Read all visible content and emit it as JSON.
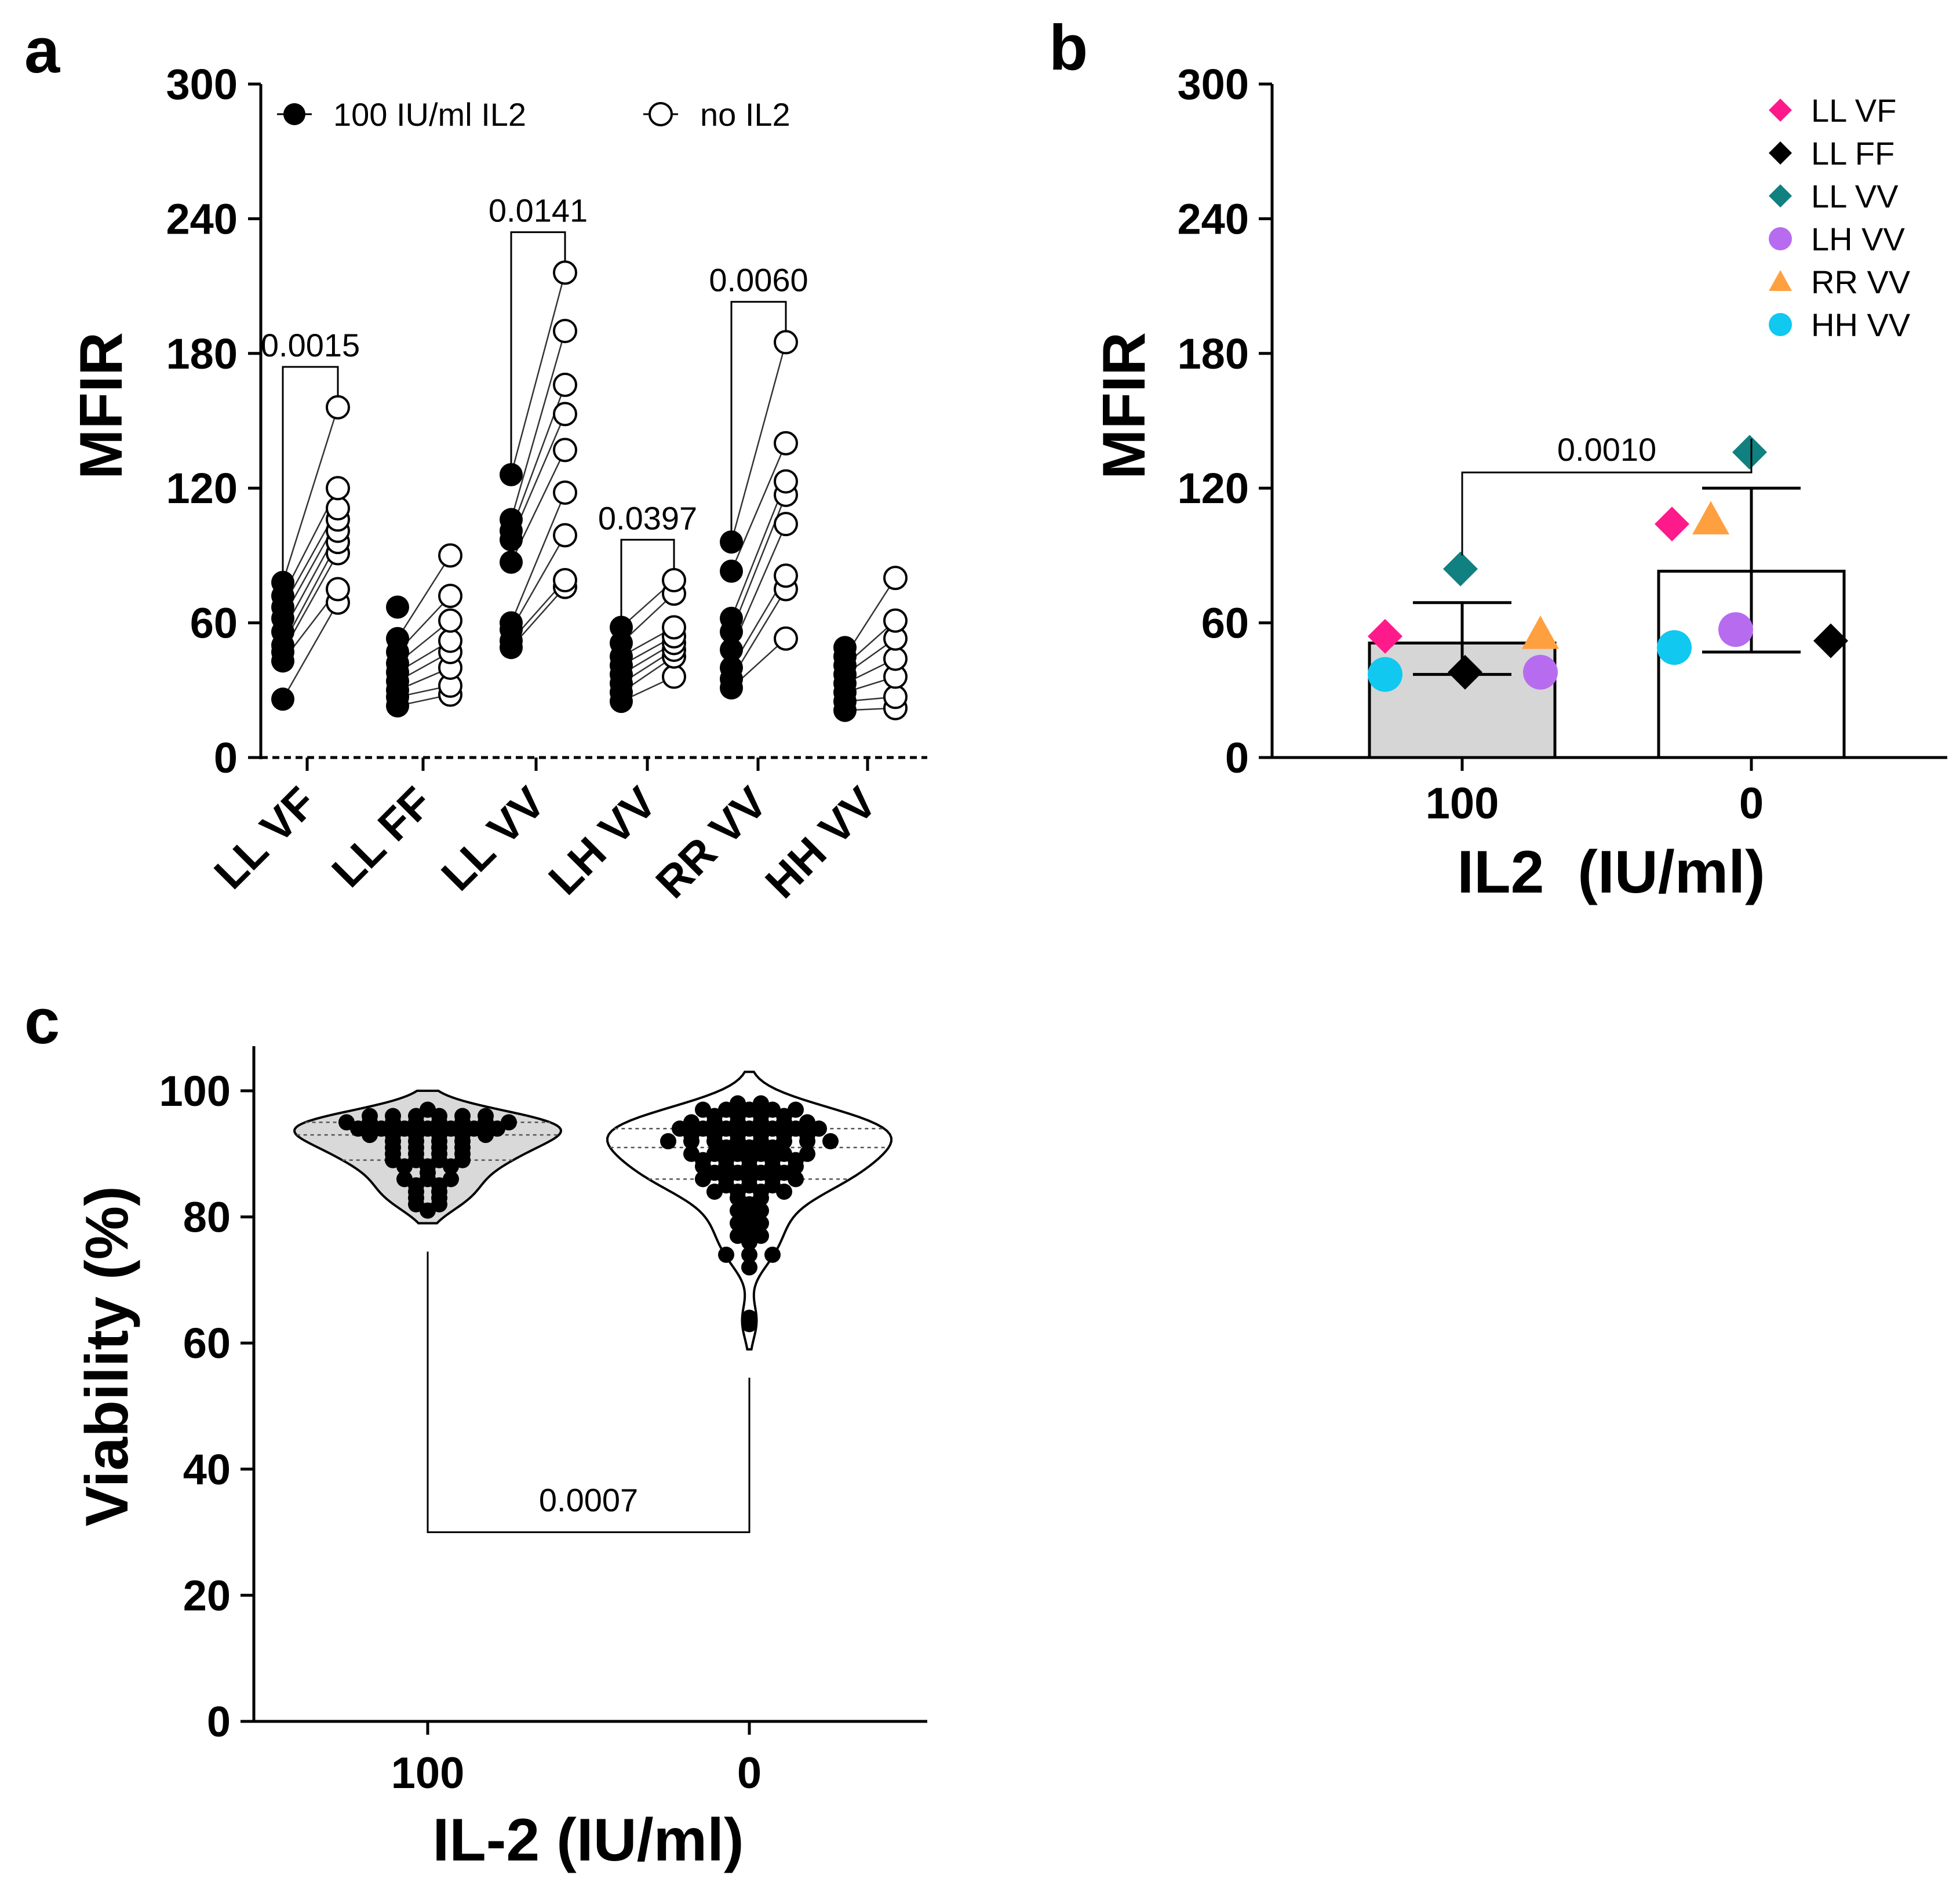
{
  "chart_data": [
    {
      "panel": "a",
      "type": "scatter",
      "subtype": "paired dot plot",
      "ylabel": "MFIR",
      "ylim": [
        0,
        300
      ],
      "yticks": [
        "0",
        "60",
        "120",
        "180",
        "240",
        "300"
      ],
      "categories": [
        "LL VF",
        "LL FF",
        "LL VV",
        "LH VV",
        "RR VV",
        "HH VV"
      ],
      "legend": [
        "100 IU/ml IL2",
        "no IL2"
      ],
      "legend_position": "top",
      "series": [
        {
          "name": "100 IU/ml IL2",
          "marker": "filled-circle",
          "values": [
            [
              26,
              43,
              47,
              50,
              56,
              62,
              67,
              72,
              78
            ],
            [
              23,
              27,
              30,
              34,
              38,
              42,
              47,
              53,
              67
            ],
            [
              49,
              52,
              57,
              60,
              87,
              97,
              101,
              106,
              126
            ],
            [
              25,
              29,
              33,
              37,
              41,
              45,
              51,
              58
            ],
            [
              31,
              35,
              40,
              48,
              56,
              62,
              83,
              96
            ],
            [
              21,
              25,
              29,
              33,
              37,
              41,
              45,
              49
            ]
          ]
        },
        {
          "name": "no IL2",
          "marker": "open-circle",
          "values": [
            [
              69,
              75,
              91,
              96,
              101,
              106,
              111,
              120,
              156
            ],
            [
              28,
              32,
              40,
              47,
              52,
              61,
              72,
              90
            ],
            [
              76,
              79,
              99,
              118,
              137,
              153,
              166,
              190,
              216
            ],
            [
              36,
              45,
              48,
              51,
              54,
              58,
              73,
              79
            ],
            [
              53,
              75,
              81,
              104,
              117,
              123,
              140,
              185
            ],
            [
              22,
              27,
              36,
              44,
              53,
              61,
              80
            ]
          ]
        }
      ],
      "annotations": [
        {
          "category": "LL VF",
          "text": "0.0015"
        },
        {
          "category": "LL VV",
          "text": "0.0141"
        },
        {
          "category": "LH VV",
          "text": "0.0397"
        },
        {
          "category": "RR VV",
          "text": "0.0060"
        }
      ]
    },
    {
      "panel": "b",
      "type": "bar",
      "xlabel": "IL2  (IU/ml)",
      "ylabel": "MFIR",
      "ylim": [
        0,
        300
      ],
      "yticks": [
        "0",
        "60",
        "120",
        "180",
        "240",
        "300"
      ],
      "categories": [
        "100",
        "0"
      ],
      "bar_means": [
        51,
        83
      ],
      "error_low": [
        37,
        47
      ],
      "error_high": [
        69,
        120
      ],
      "bar_colors": [
        "#d6d6d6",
        "#ffffff"
      ],
      "points": [
        {
          "name": "LL VF",
          "color": "#ff1a8c",
          "marker": "diamond",
          "values": [
            54,
            104
          ]
        },
        {
          "name": "LL FF",
          "color": "#000000",
          "marker": "diamond",
          "values": [
            38,
            52
          ]
        },
        {
          "name": "LL VV",
          "color": "#108080",
          "marker": "diamond",
          "values": [
            84,
            136
          ]
        },
        {
          "name": "LH VV",
          "color": "#b76cf0",
          "marker": "circle",
          "values": [
            38,
            57
          ]
        },
        {
          "name": "RR VV",
          "color": "#ffa040",
          "marker": "triangle",
          "values": [
            55,
            106
          ]
        },
        {
          "name": "HH VV",
          "color": "#10c8f0",
          "marker": "circle",
          "values": [
            37,
            49
          ]
        }
      ],
      "legend_position": "top-right",
      "annotation": "0.0010"
    },
    {
      "panel": "c",
      "type": "scatter",
      "subtype": "violin with points",
      "xlabel": "IL-2 (IU/ml)",
      "ylabel": "Viability (%)",
      "ylim": [
        0,
        110
      ],
      "yticks": [
        "0",
        "20",
        "40",
        "60",
        "80",
        "100"
      ],
      "categories": [
        "100",
        "0"
      ],
      "groups": [
        {
          "name": "100",
          "fill": "#d9d9d9",
          "min": 79,
          "max": 100,
          "median": 93,
          "q1": 89,
          "q3": 95,
          "values": [
            96,
            95,
            96,
            95,
            94,
            94,
            95,
            95,
            94,
            94,
            93,
            93,
            93,
            94,
            95,
            96,
            96,
            97,
            95,
            96,
            92,
            91,
            90,
            90,
            89,
            89,
            88,
            88,
            88,
            89,
            90,
            91,
            92,
            92,
            91,
            90,
            87,
            86,
            86,
            85,
            85,
            84,
            83,
            83,
            82,
            82,
            81,
            84,
            86,
            89,
            91,
            93,
            94,
            95,
            96,
            93,
            95,
            94,
            93,
            92
          ]
        },
        {
          "name": "0",
          "fill": "#ffffff",
          "min": 59,
          "max": 103,
          "median": 91,
          "q1": 86,
          "q3": 94,
          "values": [
            97,
            96,
            96,
            96,
            97,
            97,
            98,
            98,
            97,
            97,
            96,
            95,
            95,
            95,
            95,
            95,
            95,
            94,
            94,
            94,
            94,
            94,
            94,
            94,
            93,
            93,
            93,
            93,
            93,
            93,
            92,
            92,
            92,
            92,
            92,
            92,
            92,
            92,
            91,
            91,
            91,
            90,
            90,
            90,
            90,
            90,
            90,
            89,
            89,
            89,
            89,
            89,
            88,
            88,
            88,
            88,
            88,
            87,
            87,
            87,
            87,
            86,
            86,
            86,
            86,
            86,
            85,
            85,
            85,
            84,
            84,
            84,
            84,
            83,
            83,
            82,
            81,
            81,
            80,
            79,
            79,
            78,
            77,
            77,
            76,
            74,
            74,
            74,
            72,
            64,
            63
          ]
        }
      ],
      "annotation": "0.0007"
    }
  ],
  "panel_labels": {
    "a": "a",
    "b": "b",
    "c": "c"
  }
}
